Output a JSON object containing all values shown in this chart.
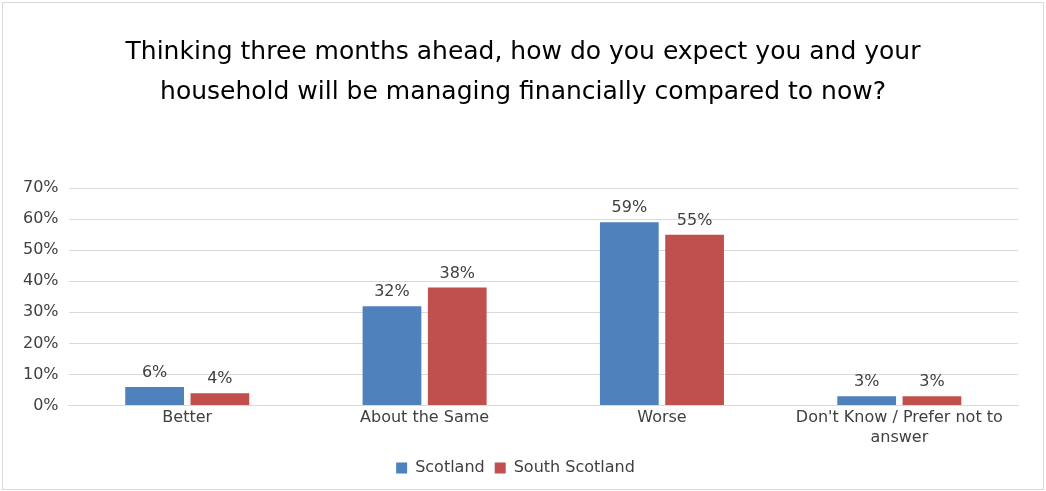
{
  "chart_data": {
    "type": "bar",
    "title": "Thinking three months ahead, how do you expect you and your household  will be managing financially compared to now?",
    "categories": [
      "Better",
      "About the Same",
      "Worse",
      "Don't Know / Prefer not to answer"
    ],
    "series": [
      {
        "name": "Scotland",
        "color": "#4f81bd",
        "values": [
          6,
          32,
          59,
          3
        ],
        "value_labels": [
          "6%",
          "32%",
          "59%",
          "3%"
        ]
      },
      {
        "name": "South Scotland",
        "color": "#c0504d",
        "values": [
          4,
          38,
          55,
          3
        ],
        "value_labels": [
          "4%",
          "38%",
          "55%",
          "3%"
        ]
      }
    ],
    "ylim": [
      0,
      70
    ],
    "yticks": [
      {
        "value": 0,
        "label": "0%"
      },
      {
        "value": 10,
        "label": "10%"
      },
      {
        "value": 20,
        "label": "20%"
      },
      {
        "value": 30,
        "label": "30%"
      },
      {
        "value": 40,
        "label": "40%"
      },
      {
        "value": 50,
        "label": "50%"
      },
      {
        "value": 60,
        "label": "60%"
      },
      {
        "value": 70,
        "label": "70%"
      }
    ],
    "grid": "y",
    "legend": "bottom"
  }
}
